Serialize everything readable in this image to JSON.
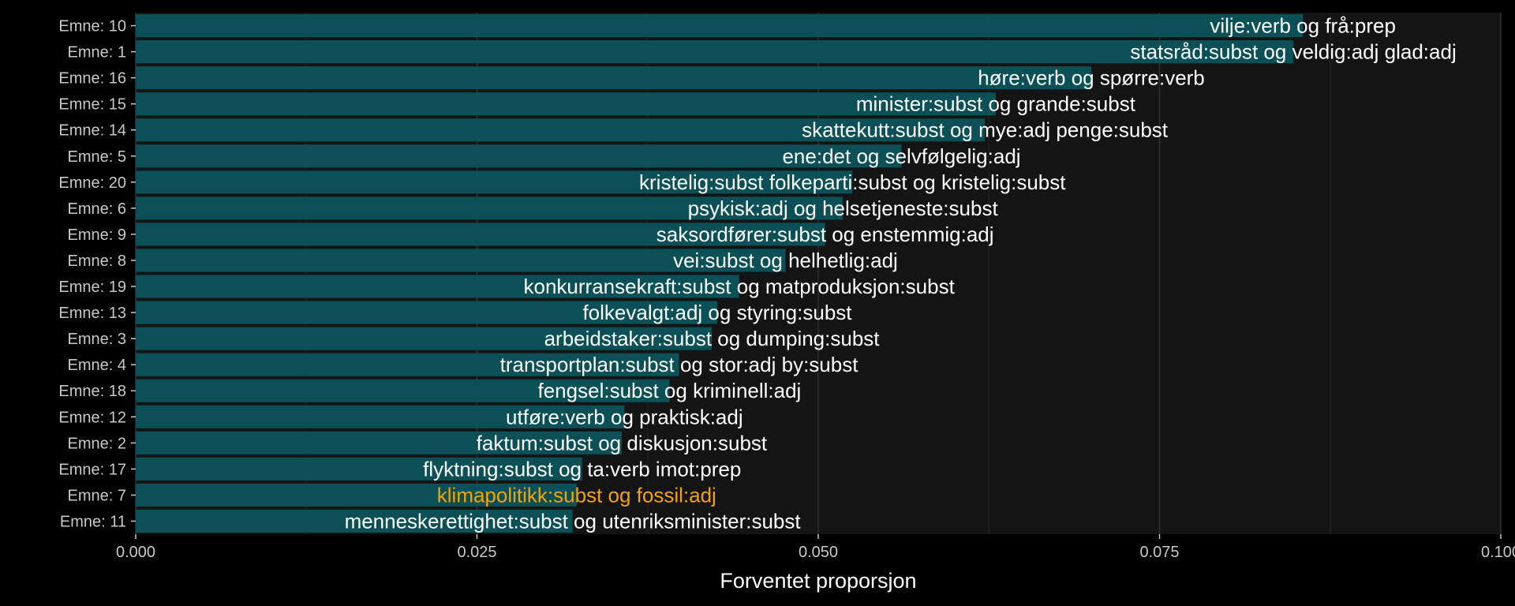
{
  "chart_data": {
    "type": "bar",
    "orientation": "horizontal",
    "xlabel": "Forventet proporsjon",
    "ylabel": "",
    "xlim": [
      0,
      0.1
    ],
    "x_ticks": [
      "0.000",
      "0.025",
      "0.050",
      "0.075",
      "0.100"
    ],
    "x_tick_values": [
      0,
      0.025,
      0.05,
      0.075,
      0.1
    ],
    "grid": true,
    "legend": "none",
    "colors": {
      "background": "#000000",
      "panel": "#141414",
      "grid_major": "#2e2e2e",
      "grid_minor": "#222222",
      "bar": "#0a5056",
      "label": "#ffffff",
      "highlight_label": "#f5a300",
      "tick_text": "#c8c8c8"
    },
    "bars": [
      {
        "category": "Emne:  10",
        "value": 0.0855,
        "label": "vilje:verb og frå:prep",
        "highlight": false
      },
      {
        "category": "Emne:  1",
        "value": 0.0848,
        "label": "statsråd:subst og veldig:adj glad:adj",
        "highlight": false
      },
      {
        "category": "Emne:  16",
        "value": 0.07,
        "label": "høre:verb og spørre:verb",
        "highlight": false
      },
      {
        "category": "Emne:  15",
        "value": 0.063,
        "label": "minister:subst og grande:subst",
        "highlight": false
      },
      {
        "category": "Emne:  14",
        "value": 0.0622,
        "label": "skattekutt:subst og mye:adj penge:subst",
        "highlight": false
      },
      {
        "category": "Emne:  5",
        "value": 0.0561,
        "label": "ene:det og selvfølgelig:adj",
        "highlight": false
      },
      {
        "category": "Emne:  20",
        "value": 0.0525,
        "label": "kristelig:subst folkeparti:subst og kristelig:subst",
        "highlight": false
      },
      {
        "category": "Emne:  6",
        "value": 0.0518,
        "label": "psykisk:adj og helsetjeneste:subst",
        "highlight": false
      },
      {
        "category": "Emne:  9",
        "value": 0.0505,
        "label": "saksordfører:subst og enstemmig:adj",
        "highlight": false
      },
      {
        "category": "Emne:  8",
        "value": 0.0476,
        "label": "vei:subst og helhetlig:adj",
        "highlight": false
      },
      {
        "category": "Emne:  19",
        "value": 0.0442,
        "label": "konkurransekraft:subst og matproduksjon:subst",
        "highlight": false
      },
      {
        "category": "Emne:  13",
        "value": 0.0426,
        "label": "folkevalgt:adj og styring:subst",
        "highlight": false
      },
      {
        "category": "Emne:  3",
        "value": 0.0422,
        "label": "arbeidstaker:subst og dumping:subst",
        "highlight": false
      },
      {
        "category": "Emne:  4",
        "value": 0.0398,
        "label": "transportplan:subst og stor:adj by:subst",
        "highlight": false
      },
      {
        "category": "Emne:  18",
        "value": 0.0391,
        "label": "fengsel:subst og kriminell:adj",
        "highlight": false
      },
      {
        "category": "Emne:  12",
        "value": 0.0358,
        "label": "utføre:verb og praktisk:adj",
        "highlight": false
      },
      {
        "category": "Emne:  2",
        "value": 0.0356,
        "label": "faktum:subst og diskusjon:subst",
        "highlight": false
      },
      {
        "category": "Emne:  17",
        "value": 0.0327,
        "label": "flyktning:subst og ta:verb imot:prep",
        "highlight": false
      },
      {
        "category": "Emne:  7",
        "value": 0.0323,
        "label": "klimapolitikk:subst og fossil:adj",
        "highlight": true
      },
      {
        "category": "Emne:  11",
        "value": 0.032,
        "label": "menneskerettighet:subst og utenriksminister:subst",
        "highlight": false
      }
    ]
  }
}
